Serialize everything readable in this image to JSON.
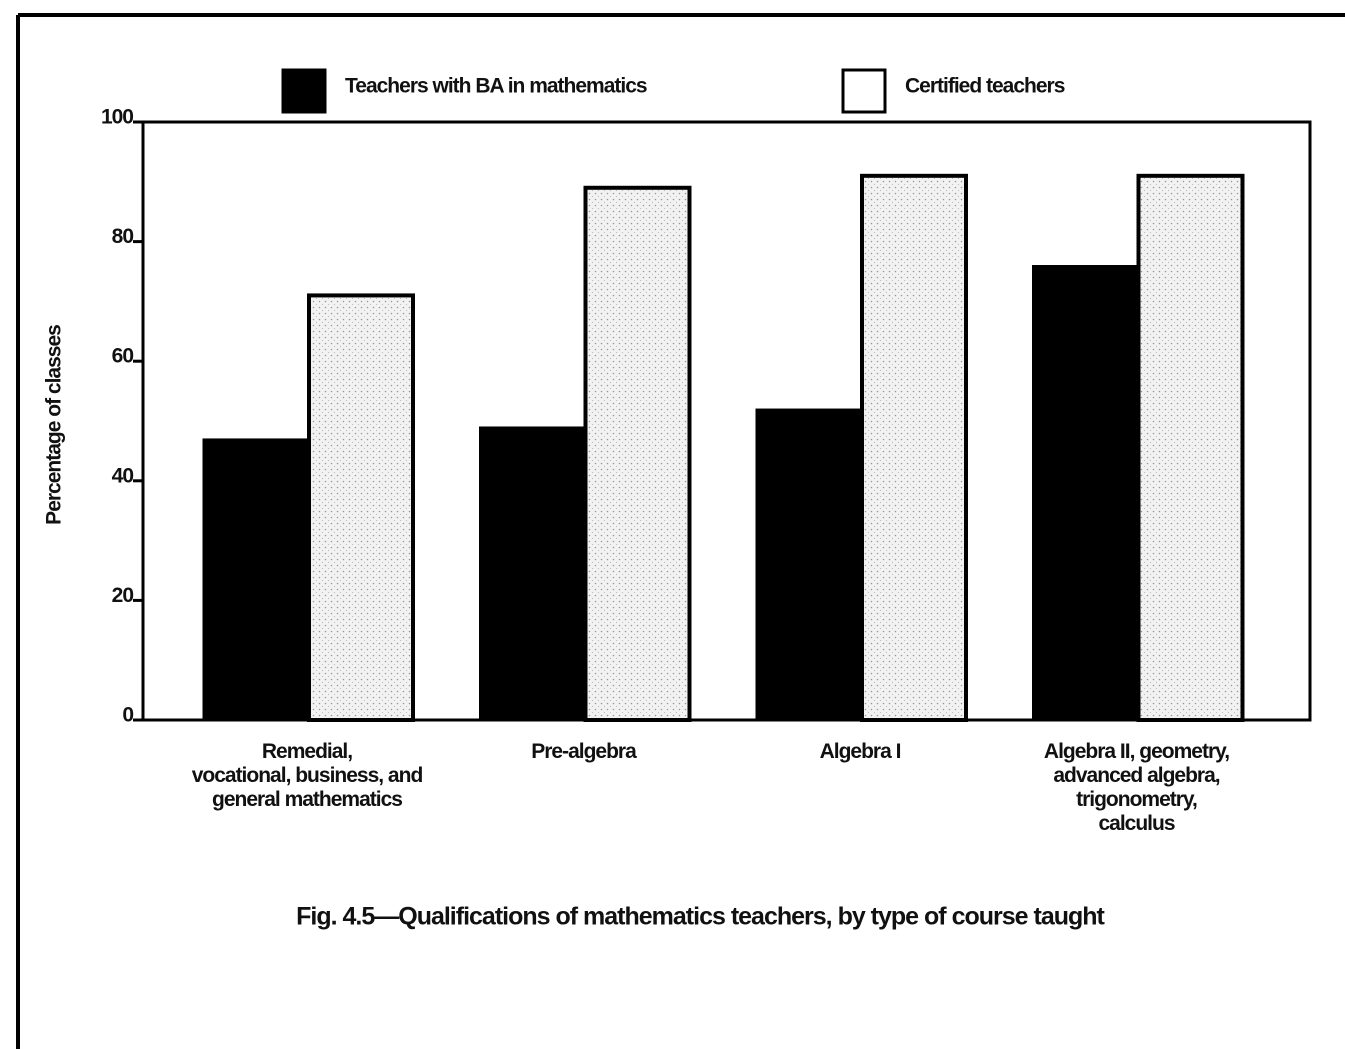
{
  "chart_data": {
    "type": "bar",
    "title": "Fig. 4.5—Qualifications of mathematics teachers, by type of course taught",
    "ylabel": "Percentage of classes",
    "categories": [
      [
        "Remedial,",
        "vocational, business, and",
        "general mathematics"
      ],
      [
        "Pre-algebra"
      ],
      [
        "Algebra I"
      ],
      [
        "Algebra II, geometry,",
        "advanced algebra,",
        "trigonometry,",
        "calculus"
      ]
    ],
    "series": [
      {
        "name": "Teachers with BA in mathematics",
        "color": "#000000",
        "values": [
          47,
          49,
          52,
          76
        ]
      },
      {
        "name": "Certified teachers",
        "color": "#eeeeee",
        "values": [
          71,
          89,
          91,
          91
        ]
      }
    ],
    "ylim": [
      0,
      100
    ],
    "yticks": [
      0,
      20,
      40,
      60,
      80,
      100
    ]
  }
}
